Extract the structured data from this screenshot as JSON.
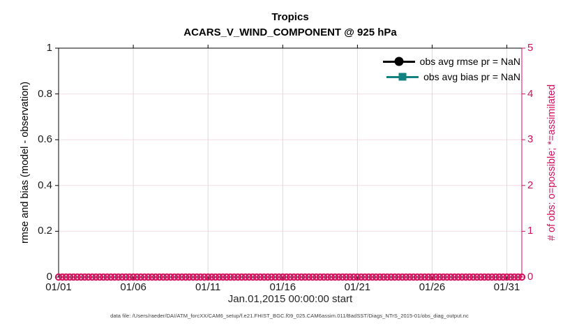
{
  "header": {
    "title_line1": "Tropics",
    "title_line2": "ACARS_V_WIND_COMPONENT @ 925 hPa"
  },
  "colors": {
    "accent_pink": "#D2105C",
    "teal": "#128280",
    "black": "#000000",
    "grid_vertical": "#DBDBDB",
    "grid_horizontal": "#F8DCE8",
    "tick_text": "#1a1a1a",
    "footer_text": "#3c3c3c"
  },
  "legend": {
    "entries": [
      {
        "label": "obs avg rmse pr = NaN",
        "marker": "circle",
        "color": "#000000"
      },
      {
        "label": "obs avg bias pr = NaN",
        "marker": "square",
        "color": "#128280"
      }
    ],
    "position": "top-right-inside",
    "frame": "none"
  },
  "chart_data": {
    "type": "line",
    "title": "Tropics",
    "subtitle": "ACARS_V_WIND_COMPONENT @ 925 hPa",
    "xlabel": "Jan.01,2015 00:00:00 start",
    "ylabel_left": "rmse and bias (model - observation)",
    "ylabel_right": "# of obs: o=possible; *=assimilated",
    "grid": "on",
    "x_axis": {
      "unit": "days since Jan.01,2015",
      "range": [
        0,
        31
      ],
      "tick_positions": [
        0,
        5,
        10,
        15,
        20,
        25,
        30
      ],
      "tick_labels": [
        "01/01",
        "01/06",
        "01/11",
        "01/16",
        "01/21",
        "01/26",
        "01/31"
      ]
    },
    "left_axis": {
      "range": [
        0,
        1
      ],
      "ticks": [
        0,
        0.2,
        0.4,
        0.6,
        0.8,
        1
      ],
      "tick_labels": [
        "0",
        "0.2",
        "0.4",
        "0.6",
        "0.8",
        "1"
      ],
      "color": "#000000"
    },
    "right_axis": {
      "range": [
        0,
        5
      ],
      "ticks": [
        0,
        1,
        2,
        3,
        4,
        5
      ],
      "tick_labels": [
        "0",
        "1",
        "2",
        "3",
        "4",
        "5"
      ],
      "color": "#D2105C"
    },
    "series": [
      {
        "name": "obs avg rmse pr = NaN",
        "axis": "left",
        "color": "#000000",
        "marker": "filled-circle",
        "value": "NaN",
        "plotted": false
      },
      {
        "name": "obs avg bias pr = NaN",
        "axis": "left",
        "color": "#128280",
        "marker": "filled-square",
        "value": "NaN",
        "plotted": false
      },
      {
        "name": "possible observations (o)",
        "axis": "right",
        "color": "#D2105C",
        "marker": "open-circle",
        "y_value": 0,
        "x_start_day": 0,
        "x_end_day": 31,
        "x_step_days": 0.25
      }
    ]
  },
  "footer": {
    "text": "data file: /Users/raeder/DAI/ATM_forcXX/CAM6_setup/f.e21.FHIST_BGC.f09_025.CAM6assim.011/BadSST/Diags_NTrS_2015-01/obs_diag_output.nc"
  }
}
